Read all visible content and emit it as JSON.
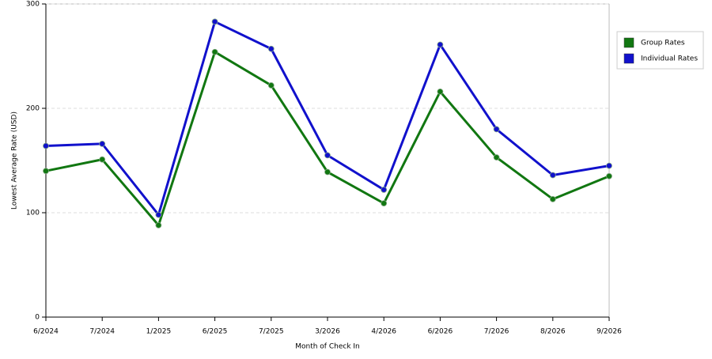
{
  "chart_data": {
    "type": "line",
    "x_label": "Month of Check In",
    "y_label": "Lowest Average Rate (USD)",
    "categories": [
      "6/2024",
      "7/2024",
      "1/2025",
      "6/2025",
      "7/2025",
      "3/2026",
      "4/2026",
      "6/2026",
      "7/2026",
      "8/2026",
      "9/2026"
    ],
    "series": [
      {
        "name": "Group Rates",
        "color": "#117711",
        "values": [
          140,
          151,
          88,
          254,
          222,
          139,
          109,
          216,
          153,
          113,
          135
        ]
      },
      {
        "name": "Individual Rates",
        "color": "#1111cc",
        "values": [
          164,
          166,
          98,
          283,
          257,
          155,
          122,
          261,
          180,
          136,
          145
        ]
      }
    ],
    "ylim": [
      0,
      300
    ],
    "yticks": [
      0,
      100,
      200,
      300
    ],
    "grid": true
  }
}
